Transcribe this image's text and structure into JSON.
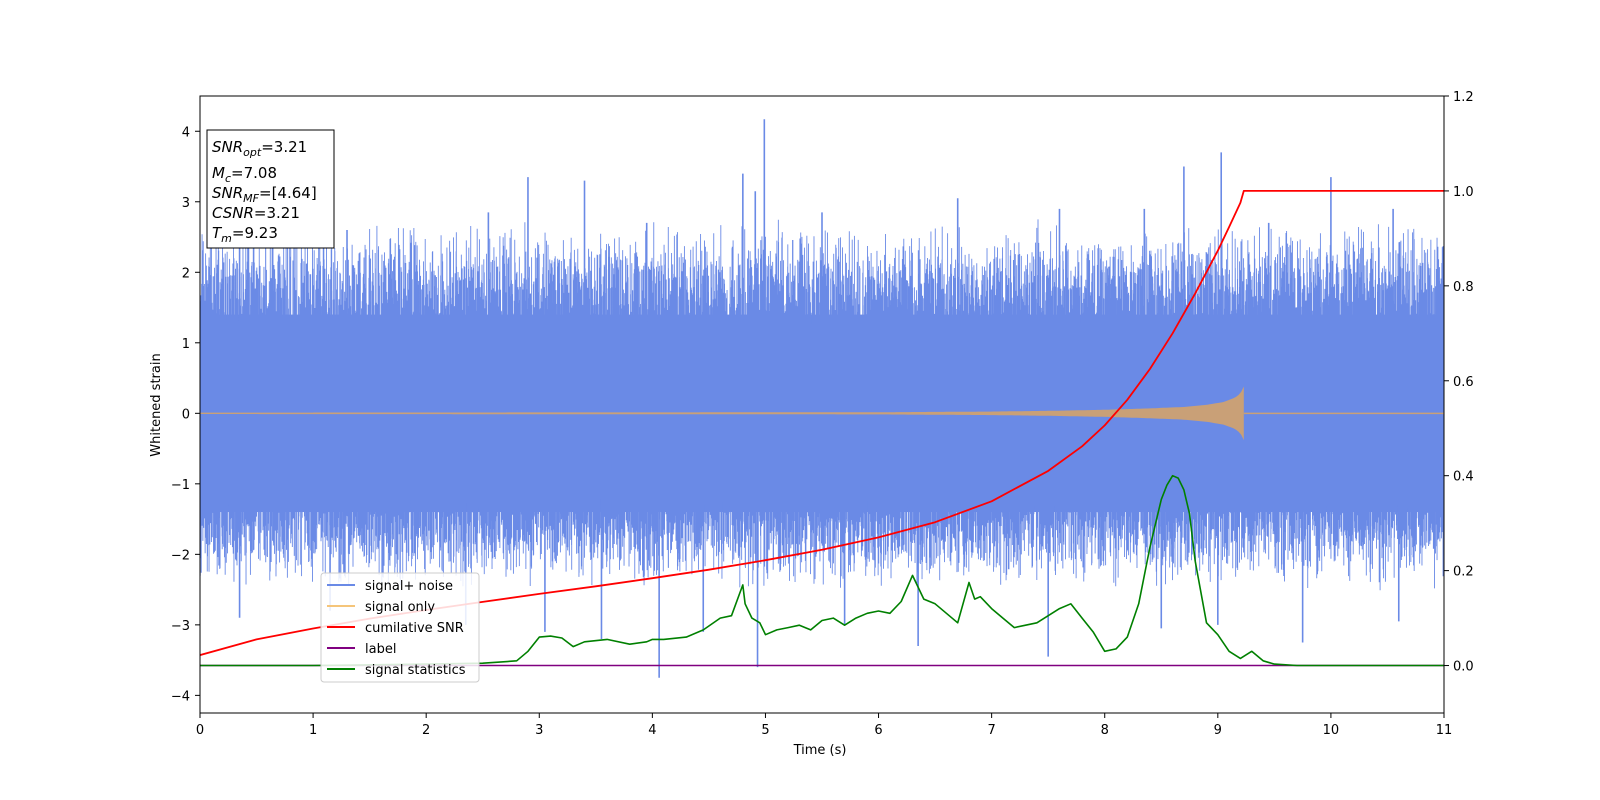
{
  "chart_data": {
    "type": "line",
    "xlabel": "Time (s)",
    "ylabel": "Whitened strain",
    "xlim": [
      0,
      11
    ],
    "ylim_left": [
      -4.25,
      4.5
    ],
    "ylim_right": [
      -0.1,
      1.2
    ],
    "x_ticks": [
      "0",
      "1",
      "2",
      "3",
      "4",
      "5",
      "6",
      "7",
      "8",
      "9",
      "10",
      "11"
    ],
    "y_ticks_left": [
      "4",
      "3",
      "2",
      "1",
      "0",
      "−1",
      "−2",
      "−3",
      "−4"
    ],
    "y_ticks_left_values": [
      4,
      3,
      2,
      1,
      0,
      -1,
      -2,
      -3,
      -4
    ],
    "y_ticks_right": [
      "1.2",
      "1.0",
      "0.8",
      "0.6",
      "0.4",
      "0.2",
      "0.0"
    ],
    "y_ticks_right_values": [
      1.2,
      1.0,
      0.8,
      0.6,
      0.4,
      0.2,
      0.0
    ],
    "info_box": {
      "snr_opt_base": "SNR",
      "snr_opt_sub": "opt",
      "snr_opt_val": "=3.21",
      "mc_base": "M",
      "mc_sub": "c",
      "mc_val": "=7.08",
      "snr_mf_base": "SNR",
      "snr_mf_sub": "MF",
      "snr_mf_val": "=[4.64]",
      "csnr_base": "CSNR",
      "csnr_val": "=3.21",
      "tm_base": "T",
      "tm_sub": "m",
      "tm_val": "=9.23"
    },
    "legend": [
      "signal+ noise",
      "signal only",
      "cumilative SNR",
      "label",
      "signal statistics"
    ],
    "colors": {
      "noise": "#6a8ae6",
      "signal": "#c9a077",
      "legend_signal": "#f5c57a",
      "cumulative": "#ff0000",
      "label": "#800080",
      "statistics": "#008000"
    },
    "series": [
      {
        "name": "signal+ noise",
        "axis": "left",
        "band": {
          "x": [
            0,
            11
          ],
          "core_low": -1.4,
          "core_high": 1.4,
          "typical_low": -2.3,
          "typical_high": 2.5
        },
        "spikes": [
          {
            "x": 0.35,
            "y": 2.9
          },
          {
            "x": 1.3,
            "y": 2.6
          },
          {
            "x": 2.55,
            "y": 2.85
          },
          {
            "x": 2.9,
            "y": 3.35
          },
          {
            "x": 3.4,
            "y": 3.3
          },
          {
            "x": 3.95,
            "y": 2.7
          },
          {
            "x": 4.8,
            "y": 3.4
          },
          {
            "x": 4.91,
            "y": 3.15
          },
          {
            "x": 4.99,
            "y": 4.17
          },
          {
            "x": 5.5,
            "y": 2.85
          },
          {
            "x": 6.7,
            "y": 3.05
          },
          {
            "x": 7.6,
            "y": 2.9
          },
          {
            "x": 8.35,
            "y": 2.9
          },
          {
            "x": 8.7,
            "y": 3.5
          },
          {
            "x": 9.03,
            "y": 3.7
          },
          {
            "x": 9.45,
            "y": 2.7
          },
          {
            "x": 10.0,
            "y": 3.35
          },
          {
            "x": 10.55,
            "y": 2.9
          },
          {
            "x": 0.35,
            "y": -2.9
          },
          {
            "x": 1.15,
            "y": -2.8
          },
          {
            "x": 2.35,
            "y": -3.0
          },
          {
            "x": 3.05,
            "y": -3.1
          },
          {
            "x": 3.55,
            "y": -3.2
          },
          {
            "x": 4.06,
            "y": -3.75
          },
          {
            "x": 4.45,
            "y": -3.1
          },
          {
            "x": 4.93,
            "y": -3.6
          },
          {
            "x": 5.7,
            "y": -3.0
          },
          {
            "x": 6.35,
            "y": -3.3
          },
          {
            "x": 7.5,
            "y": -3.45
          },
          {
            "x": 8.5,
            "y": -3.05
          },
          {
            "x": 9.0,
            "y": -3.0
          },
          {
            "x": 9.75,
            "y": -3.25
          },
          {
            "x": 10.6,
            "y": -2.95
          }
        ]
      },
      {
        "name": "signal only",
        "axis": "left",
        "x": [
          0,
          6.0,
          7.0,
          7.5,
          8.0,
          8.4,
          8.7,
          8.9,
          9.05,
          9.15,
          9.2,
          9.23
        ],
        "amplitude": [
          0.01,
          0.015,
          0.025,
          0.035,
          0.05,
          0.07,
          0.09,
          0.12,
          0.16,
          0.22,
          0.28,
          0.38
        ],
        "end_x": 9.23
      },
      {
        "name": "cumilative SNR",
        "axis": "right",
        "x": [
          0,
          0.5,
          1,
          1.5,
          2,
          2.5,
          3,
          3.5,
          4,
          4.5,
          5,
          5.5,
          6,
          6.5,
          7,
          7.5,
          7.8,
          8.0,
          8.2,
          8.4,
          8.6,
          8.8,
          9.0,
          9.1,
          9.2,
          9.23,
          11
        ],
        "values": [
          0.022,
          0.055,
          0.078,
          0.099,
          0.117,
          0.134,
          0.151,
          0.167,
          0.184,
          0.202,
          0.222,
          0.244,
          0.27,
          0.302,
          0.346,
          0.41,
          0.462,
          0.506,
          0.56,
          0.625,
          0.7,
          0.784,
          0.874,
          0.924,
          0.975,
          1.0,
          1.0
        ]
      },
      {
        "name": "label",
        "axis": "right",
        "x": [
          0,
          11
        ],
        "values": [
          0.0,
          0.0
        ]
      },
      {
        "name": "signal statistics",
        "axis": "right",
        "x": [
          0,
          1,
          2,
          2.5,
          2.7,
          2.8,
          2.9,
          3.0,
          3.1,
          3.2,
          3.3,
          3.4,
          3.6,
          3.8,
          3.95,
          4.0,
          4.1,
          4.3,
          4.45,
          4.6,
          4.7,
          4.8,
          4.82,
          4.88,
          4.95,
          5.0,
          5.1,
          5.2,
          5.3,
          5.4,
          5.5,
          5.6,
          5.7,
          5.8,
          5.9,
          6.0,
          6.1,
          6.2,
          6.3,
          6.4,
          6.5,
          6.6,
          6.7,
          6.8,
          6.85,
          6.9,
          7.0,
          7.1,
          7.2,
          7.3,
          7.4,
          7.6,
          7.7,
          7.8,
          7.9,
          8.0,
          8.1,
          8.2,
          8.3,
          8.4,
          8.5,
          8.55,
          8.6,
          8.65,
          8.7,
          8.75,
          8.8,
          8.9,
          9.0,
          9.1,
          9.2,
          9.3,
          9.4,
          9.5,
          9.7,
          10,
          11
        ],
        "values": [
          0.0,
          0.0,
          0.003,
          0.005,
          0.008,
          0.01,
          0.03,
          0.06,
          0.062,
          0.058,
          0.04,
          0.05,
          0.055,
          0.045,
          0.05,
          0.055,
          0.055,
          0.06,
          0.075,
          0.1,
          0.105,
          0.17,
          0.13,
          0.1,
          0.09,
          0.065,
          0.075,
          0.08,
          0.085,
          0.075,
          0.095,
          0.1,
          0.085,
          0.1,
          0.11,
          0.115,
          0.11,
          0.135,
          0.19,
          0.14,
          0.13,
          0.11,
          0.09,
          0.175,
          0.14,
          0.145,
          0.12,
          0.1,
          0.08,
          0.085,
          0.09,
          0.12,
          0.13,
          0.1,
          0.07,
          0.03,
          0.035,
          0.06,
          0.13,
          0.25,
          0.35,
          0.38,
          0.4,
          0.395,
          0.37,
          0.32,
          0.22,
          0.09,
          0.065,
          0.03,
          0.015,
          0.03,
          0.01,
          0.003,
          0.0,
          0.0,
          0.0
        ]
      }
    ]
  }
}
